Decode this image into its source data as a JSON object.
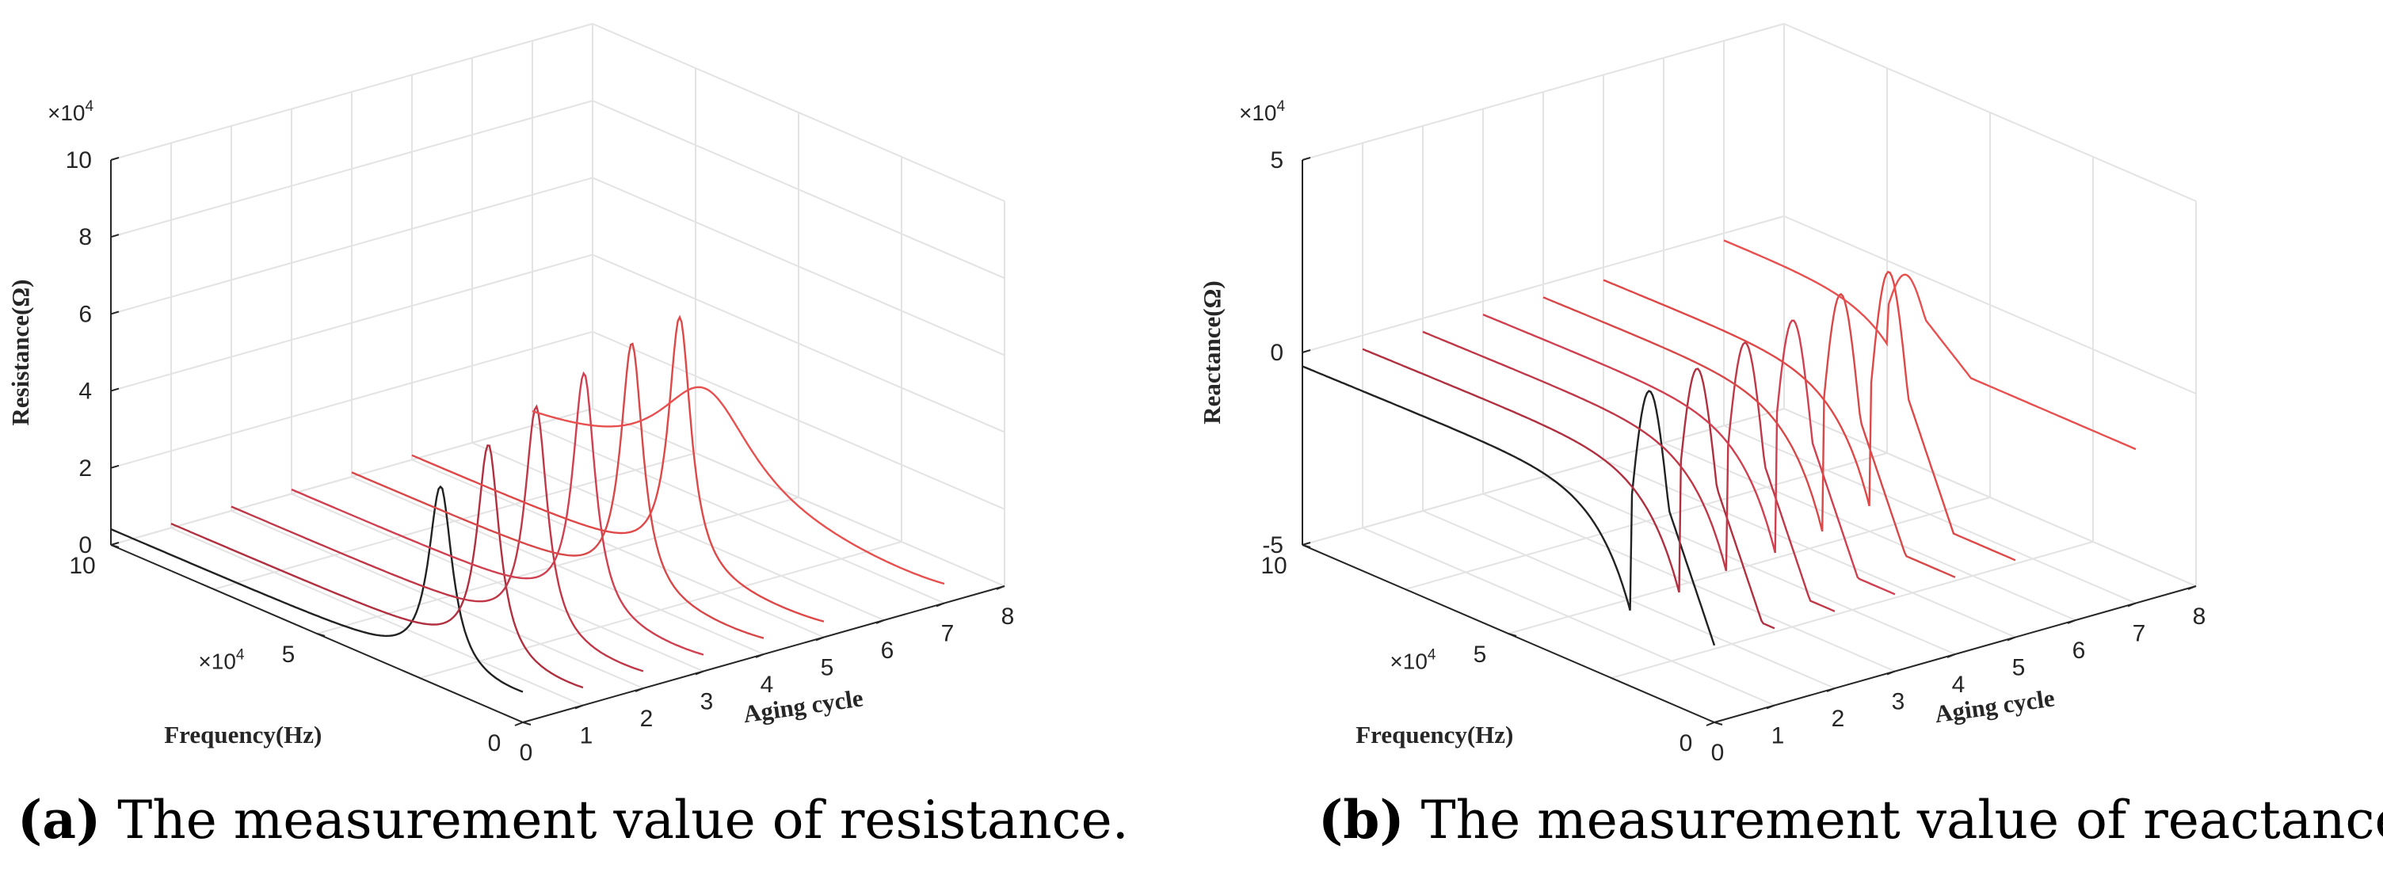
{
  "chart_data": [
    {
      "type": "line3d",
      "panel_label": "(a)",
      "caption": "The measurement value of resistance.",
      "zlabel": "Resistance(Ω)",
      "ylabel": "Frequency(Hz)",
      "xlabel": "Aging cycle",
      "z_multiplier": "×10",
      "z_multiplier_exp": "4",
      "y_multiplier": "×10",
      "y_multiplier_exp": "4",
      "zlim": [
        0,
        10
      ],
      "ylim": [
        0,
        10
      ],
      "xlim": [
        0,
        8
      ],
      "z_ticks": [
        0,
        2,
        4,
        6,
        8,
        10
      ],
      "y_ticks": [
        0,
        5,
        10
      ],
      "x_ticks": [
        0,
        1,
        2,
        3,
        4,
        5,
        6,
        7,
        8
      ],
      "units_note": "Resistance and frequency in units of 10^4",
      "series": [
        {
          "aging_cycle": 0,
          "color": "#222222",
          "peak_frequency": 2.0,
          "peak_value": 4.8,
          "baseline": 0.4,
          "width": 0.35
        },
        {
          "aging_cycle": 1,
          "color": "#b03040",
          "peak_frequency": 2.3,
          "peak_value": 5.6,
          "baseline": 0.1,
          "width": 0.33
        },
        {
          "aging_cycle": 2,
          "color": "#c03848",
          "peak_frequency": 2.6,
          "peak_value": 6.0,
          "baseline": 0.1,
          "width": 0.33
        },
        {
          "aging_cycle": 3,
          "color": "#d04050",
          "peak_frequency": 2.9,
          "peak_value": 6.3,
          "baseline": 0.1,
          "width": 0.33
        },
        {
          "aging_cycle": 4,
          "color": "#d84848",
          "peak_frequency": 3.2,
          "peak_value": 6.5,
          "baseline": 0.1,
          "width": 0.33
        },
        {
          "aging_cycle": 5,
          "color": "#e04848",
          "peak_frequency": 3.5,
          "peak_value": 6.6,
          "baseline": 0.1,
          "width": 0.33
        },
        {
          "aging_cycle": 7,
          "color": "#e85050",
          "peak_frequency": 5.8,
          "peak_value": 2.8,
          "baseline": 0.1,
          "width": 1.4
        }
      ]
    },
    {
      "type": "line3d",
      "panel_label": "(b)",
      "caption": "The measurement value of reactance.",
      "zlabel": "Reactance(Ω)",
      "ylabel": "Frequency(Hz)",
      "xlabel": "Aging cycle",
      "z_multiplier": "×10",
      "z_multiplier_exp": "4",
      "y_multiplier": "×10",
      "y_multiplier_exp": "4",
      "zlim": [
        -5,
        5
      ],
      "ylim": [
        0,
        10
      ],
      "xlim": [
        0,
        8
      ],
      "z_ticks": [
        -5,
        0,
        5
      ],
      "z_tick_labels": [
        "-5",
        "0",
        "5"
      ],
      "y_ticks": [
        0,
        5,
        10
      ],
      "x_ticks": [
        0,
        1,
        2,
        3,
        4,
        5,
        6,
        7,
        8
      ],
      "units_note": "Reactance and frequency in units of 10^4",
      "series": [
        {
          "aging_cycle": 0,
          "color": "#222222",
          "resonance_frequency": 2.0,
          "amplitude": 3.0,
          "start_value": -0.2,
          "end_value": -3.0
        },
        {
          "aging_cycle": 1,
          "color": "#b03040",
          "resonance_frequency": 2.3,
          "amplitude": 3.0,
          "start_value": -0.2,
          "end_value": -3.0
        },
        {
          "aging_cycle": 2,
          "color": "#c03848",
          "resonance_frequency": 2.6,
          "amplitude": 3.1,
          "start_value": -0.2,
          "end_value": -3.0
        },
        {
          "aging_cycle": 3,
          "color": "#d04050",
          "resonance_frequency": 2.9,
          "amplitude": 3.1,
          "start_value": -0.2,
          "end_value": -3.0
        },
        {
          "aging_cycle": 4,
          "color": "#d84848",
          "resonance_frequency": 3.2,
          "amplitude": 3.2,
          "start_value": -0.2,
          "end_value": -3.0
        },
        {
          "aging_cycle": 5,
          "color": "#e04848",
          "resonance_frequency": 3.5,
          "amplitude": 3.2,
          "start_value": -0.2,
          "end_value": -3.0
        },
        {
          "aging_cycle": 7,
          "color": "#e85050",
          "resonance_frequency": 6.0,
          "amplitude": 1.0,
          "start_value": -0.1,
          "end_value": -1.0
        }
      ]
    }
  ]
}
